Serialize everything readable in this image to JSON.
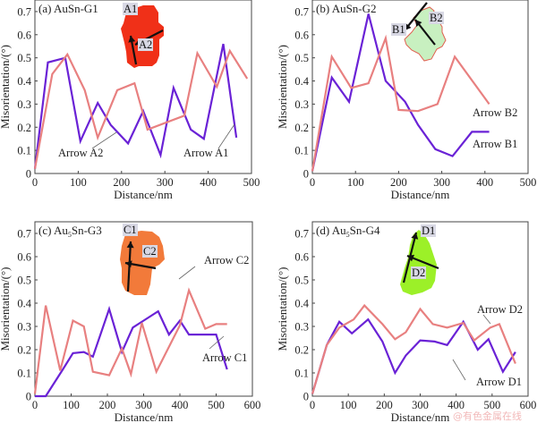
{
  "colors": {
    "series1": "#6a22d6",
    "series2": "#e88080",
    "axis": "#555555"
  },
  "watermark": "@有色金属在线",
  "chart_data": [
    {
      "type": "line",
      "panel": "(a)",
      "title_prefix": "(a) AuSn-G1",
      "title_parts": [
        "(a) AuSn-G1"
      ],
      "xlabel": "Distance/nm",
      "ylabel": "Misorientation/(°)",
      "xlim": [
        0,
        500
      ],
      "ylim": [
        0,
        0.75
      ],
      "xticks": [
        0,
        100,
        200,
        300,
        400,
        500
      ],
      "yticks": [
        0,
        0.1,
        0.2,
        0.3,
        0.4,
        0.5,
        0.6,
        0.7
      ],
      "ytick_labels": [
        "0",
        "0.1",
        "0.2",
        "0.3",
        "0.4",
        "0.5",
        "0.6",
        "0.7"
      ],
      "inset": {
        "color": "#f03018",
        "labels": [
          "A1",
          "A2"
        ]
      },
      "series": [
        {
          "name": "Arrow A1",
          "color": "#6a22d6",
          "x": [
            0,
            30,
            70,
            105,
            145,
            175,
            215,
            250,
            290,
            320,
            360,
            390,
            435,
            465
          ],
          "y": [
            0.02,
            0.48,
            0.5,
            0.14,
            0.305,
            0.21,
            0.13,
            0.27,
            0.08,
            0.37,
            0.19,
            0.15,
            0.56,
            0.155
          ]
        },
        {
          "name": "Arrow A2",
          "color": "#e88080",
          "x": [
            0,
            40,
            75,
            115,
            145,
            190,
            230,
            260,
            345,
            375,
            420,
            450,
            490
          ],
          "y": [
            0.02,
            0.43,
            0.515,
            0.36,
            0.155,
            0.36,
            0.39,
            0.19,
            0.25,
            0.52,
            0.375,
            0.53,
            0.41
          ]
        }
      ],
      "annotations": [
        {
          "text": "Arrow A2",
          "series": "Arrow A2"
        },
        {
          "text": "Arrow A1",
          "series": "Arrow A1"
        }
      ]
    },
    {
      "type": "line",
      "panel": "(b)",
      "title_parts": [
        "(b) AuSn-G2"
      ],
      "xlabel": "Distance/nm",
      "ylabel": "Misorientation/(°)",
      "xlim": [
        0,
        500
      ],
      "ylim": [
        0,
        0.75
      ],
      "xticks": [
        0,
        100,
        200,
        300,
        400,
        500
      ],
      "yticks": [
        0,
        0.1,
        0.2,
        0.3,
        0.4,
        0.5,
        0.6,
        0.7
      ],
      "ytick_labels": [
        "0",
        "0.1",
        "0.2",
        "0.3",
        "0.4",
        "0.5",
        "0.6",
        "0.7"
      ],
      "inset": {
        "color": "#c8f0c0",
        "labels": [
          "B1",
          "B2"
        ]
      },
      "series": [
        {
          "name": "Arrow B1",
          "color": "#6a22d6",
          "x": [
            0,
            45,
            85,
            130,
            170,
            215,
            245,
            285,
            325,
            370,
            410
          ],
          "y": [
            0.01,
            0.415,
            0.31,
            0.69,
            0.4,
            0.31,
            0.21,
            0.105,
            0.075,
            0.18,
            0.18
          ]
        },
        {
          "name": "Arrow B2",
          "color": "#e88080",
          "x": [
            0,
            45,
            90,
            130,
            170,
            200,
            245,
            290,
            330,
            410
          ],
          "y": [
            0.01,
            0.505,
            0.37,
            0.39,
            0.585,
            0.275,
            0.27,
            0.3,
            0.505,
            0.3
          ]
        }
      ],
      "annotations": [
        {
          "text": "Arrow B2",
          "series": "Arrow B2"
        },
        {
          "text": "Arrow B1",
          "series": "Arrow B1"
        }
      ]
    },
    {
      "type": "line",
      "panel": "(c)",
      "title_parts": [
        "(c) Au",
        "5",
        "Sn-G3"
      ],
      "xlabel": "Distance/nm",
      "ylabel": "Misorientation/(°)",
      "xlim": [
        0,
        600
      ],
      "ylim": [
        0,
        0.75
      ],
      "xticks": [
        0,
        100,
        200,
        300,
        400,
        500,
        600
      ],
      "yticks": [
        0,
        0.1,
        0.2,
        0.3,
        0.4,
        0.5,
        0.6,
        0.7
      ],
      "ytick_labels": [
        "0",
        "0.1",
        "0.2",
        "0.3",
        "0.4",
        "0.5",
        "0.6",
        "0.7"
      ],
      "inset": {
        "color": "#f27a3a",
        "labels": [
          "C1",
          "C2"
        ]
      },
      "series": [
        {
          "name": "Arrow C1",
          "color": "#6a22d6",
          "x": [
            0,
            30,
            75,
            105,
            135,
            160,
            205,
            240,
            270,
            300,
            340,
            370,
            400,
            425,
            500,
            530
          ],
          "y": [
            0,
            0,
            0.11,
            0.185,
            0.19,
            0.17,
            0.375,
            0.19,
            0.295,
            0.325,
            0.365,
            0.265,
            0.325,
            0.265,
            0.265,
            0.115
          ]
        },
        {
          "name": "Arrow C2",
          "color": "#e88080",
          "x": [
            0,
            30,
            70,
            105,
            135,
            160,
            205,
            240,
            265,
            295,
            335,
            400,
            425,
            470,
            500,
            530
          ],
          "y": [
            0.01,
            0.39,
            0.11,
            0.325,
            0.3,
            0.105,
            0.09,
            0.205,
            0.095,
            0.315,
            0.105,
            0.305,
            0.455,
            0.29,
            0.31,
            0.31
          ]
        }
      ],
      "annotations": [
        {
          "text": "Arrow C2",
          "series": "Arrow C2"
        },
        {
          "text": "Arrow C1",
          "series": "Arrow C1"
        }
      ]
    },
    {
      "type": "line",
      "panel": "(d)",
      "title_parts": [
        "(d) Au",
        "5",
        "Sn-G4"
      ],
      "xlabel": "Distance/nm",
      "ylabel": "Misorientation/(°)",
      "xlim": [
        0,
        600
      ],
      "ylim": [
        0,
        0.75
      ],
      "xticks": [
        0,
        100,
        200,
        300,
        400,
        500,
        600
      ],
      "yticks": [
        0,
        0.1,
        0.2,
        0.3,
        0.4,
        0.5,
        0.6,
        0.7
      ],
      "ytick_labels": [
        "0",
        "0.1",
        "0.2",
        "0.3",
        "0.4",
        "0.5",
        "0.6",
        "0.7"
      ],
      "inset": {
        "color": "#9cf028",
        "labels": [
          "D1",
          "D2"
        ]
      },
      "series": [
        {
          "name": "Arrow D1",
          "color": "#6a22d6",
          "x": [
            0,
            40,
            75,
            110,
            155,
            195,
            230,
            260,
            300,
            340,
            375,
            420,
            460,
            490,
            530,
            565
          ],
          "y": [
            0.01,
            0.22,
            0.32,
            0.27,
            0.33,
            0.235,
            0.1,
            0.175,
            0.24,
            0.235,
            0.22,
            0.32,
            0.2,
            0.245,
            0.105,
            0.19
          ]
        },
        {
          "name": "Arrow D2",
          "color": "#e88080",
          "x": [
            0,
            40,
            75,
            115,
            145,
            195,
            230,
            260,
            300,
            335,
            375,
            420,
            450,
            495,
            520,
            565
          ],
          "y": [
            0.01,
            0.22,
            0.295,
            0.33,
            0.39,
            0.31,
            0.245,
            0.275,
            0.375,
            0.31,
            0.295,
            0.315,
            0.24,
            0.295,
            0.31,
            0.14
          ]
        }
      ],
      "annotations": [
        {
          "text": "Arrow D2",
          "series": "Arrow D2"
        },
        {
          "text": "Arrow D1",
          "series": "Arrow D1"
        }
      ]
    }
  ]
}
